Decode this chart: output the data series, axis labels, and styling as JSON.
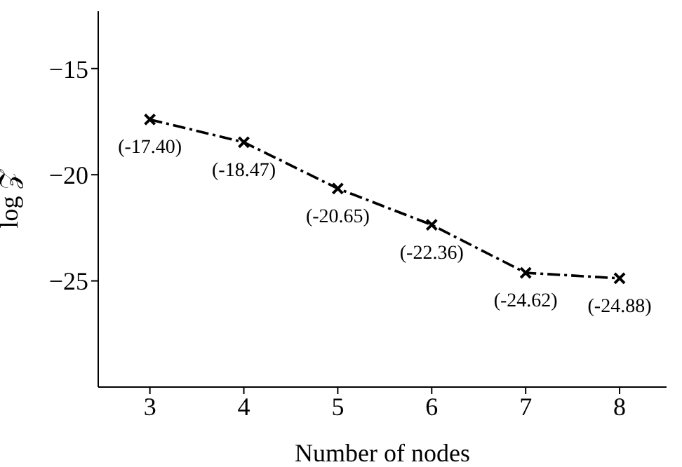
{
  "chart_data": {
    "type": "line",
    "xlabel": "Number of nodes",
    "ylabel": "log 𝒵",
    "x": [
      3,
      4,
      5,
      6,
      7,
      8
    ],
    "series": [
      {
        "color": "#000000",
        "values": [
          -17.4,
          -18.47,
          -20.65,
          -22.36,
          -24.62,
          -24.88
        ],
        "value_labels": [
          "(-17.40)",
          "(-18.47)",
          "(-20.65)",
          "(-22.36)",
          "(-24.62)",
          "(-24.88)"
        ]
      }
    ],
    "xlim": [
      2.45,
      8.5
    ],
    "ylim": [
      -30,
      -12.3
    ],
    "xticks": [
      3,
      4,
      5,
      6,
      7,
      8
    ],
    "yticks": [
      -15,
      -20,
      -25
    ],
    "grid": false,
    "legend": false,
    "marker": "cross",
    "line_style": "dashed"
  }
}
